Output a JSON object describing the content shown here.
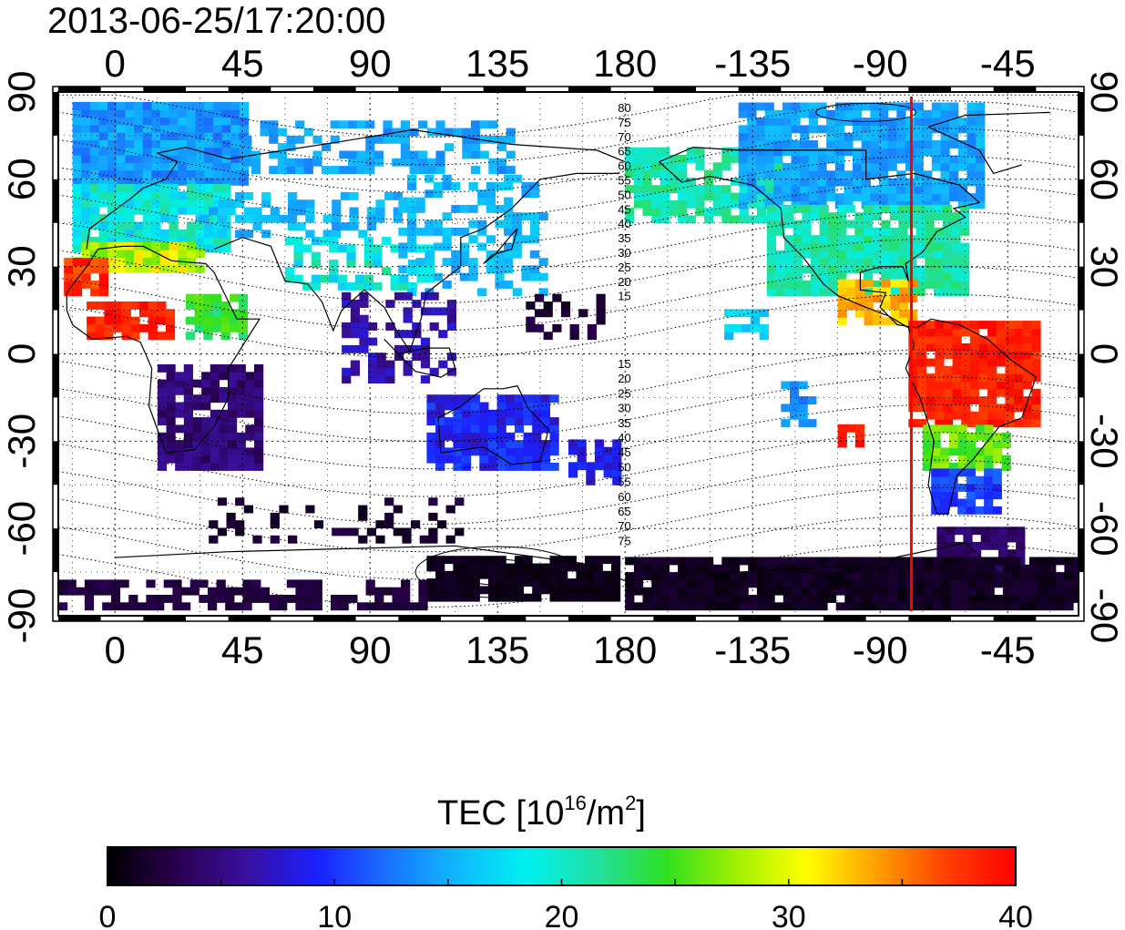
{
  "title": "2013-06-25/17:20:00",
  "map": {
    "lon_ticks": [
      "0",
      "45",
      "90",
      "135",
      "180",
      "-135",
      "-90",
      "-45"
    ],
    "lat_ticks": [
      "90",
      "60",
      "30",
      "0",
      "-30",
      "-60",
      "-90"
    ],
    "terminator_lon": -79,
    "contour_labels_north": [
      "80",
      "75",
      "70",
      "65",
      "60",
      "55",
      "50",
      "45",
      "40",
      "35",
      "30",
      "25",
      "20",
      "15"
    ],
    "contour_labels_south": [
      "15",
      "20",
      "25",
      "30",
      "35",
      "40",
      "45",
      "50",
      "55",
      "60",
      "65",
      "70",
      "75"
    ]
  },
  "colorbar": {
    "title": "TEC  [10",
    "title_sup": "16",
    "title_mid": "/m",
    "title_sup2": "2",
    "title_end": "]",
    "ticks": [
      "0",
      "10",
      "20",
      "30",
      "40"
    ],
    "min": 0,
    "max": 40,
    "colors": [
      "#000000",
      "#2a0050",
      "#3a10a0",
      "#1a20ff",
      "#1a70ff",
      "#10b8ff",
      "#00f0f0",
      "#20e0a0",
      "#30e020",
      "#a0f000",
      "#ffff00",
      "#ffa000",
      "#ff4000",
      "#ff0000"
    ]
  },
  "colors": {
    "terminator": "#ff0000",
    "coast": "#000000",
    "grid": "#000000"
  }
}
